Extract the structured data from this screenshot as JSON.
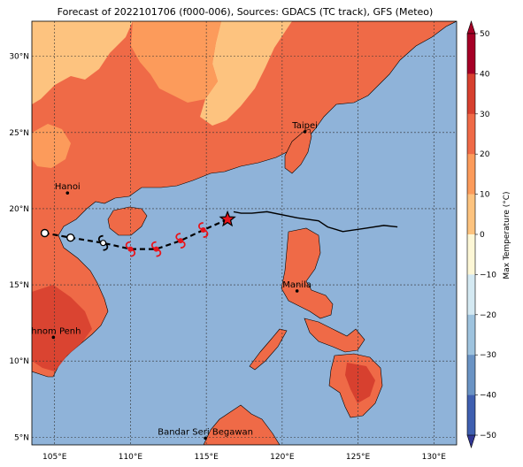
{
  "title": "Forecast of 2022101706 (f000-006), Sources: GDACS (TC track), GFS (Meteo)",
  "colors": {
    "sea": "#8fb3d9",
    "land_base": "#ef6a47",
    "land_hot": "#d7402f",
    "land_warm": "#fc9b5b",
    "land_mild": "#fdc37f",
    "track_future": "#000000",
    "storm_symbol": "#e8141b"
  },
  "map": {
    "lon_range": [
      103.5,
      131.5
    ],
    "lat_range": [
      4.5,
      32.3
    ],
    "lon_ticks": [
      {
        "value": 105,
        "label": "105°E"
      },
      {
        "value": 110,
        "label": "110°E"
      },
      {
        "value": 115,
        "label": "115°E"
      },
      {
        "value": 120,
        "label": "120°E"
      },
      {
        "value": 125,
        "label": "125°E"
      },
      {
        "value": 130,
        "label": "130°E"
      }
    ],
    "lat_ticks": [
      {
        "value": 5,
        "label": "5°N"
      },
      {
        "value": 10,
        "label": "10°N"
      },
      {
        "value": 15,
        "label": "15°N"
      },
      {
        "value": 20,
        "label": "20°N"
      },
      {
        "value": 25,
        "label": "25°N"
      },
      {
        "value": 30,
        "label": "30°N"
      }
    ],
    "grid": true
  },
  "cities": [
    {
      "name": "Taipei",
      "lon": 121.5,
      "lat": 25.05
    },
    {
      "name": "Hanoi",
      "lon": 105.85,
      "lat": 21.03
    },
    {
      "name": "Manila",
      "lon": 120.98,
      "lat": 14.6
    },
    {
      "name": "Phnom Penh",
      "lon": 104.92,
      "lat": 11.56
    },
    {
      "name": "Bandar Seri Begawan",
      "lon": 114.94,
      "lat": 4.94
    }
  ],
  "track": {
    "past": [
      {
        "lon": 127.6,
        "lat": 18.8
      },
      {
        "lon": 126.7,
        "lat": 18.9
      },
      {
        "lon": 125.4,
        "lat": 18.7
      },
      {
        "lon": 124.0,
        "lat": 18.5
      },
      {
        "lon": 123.0,
        "lat": 18.8
      },
      {
        "lon": 122.4,
        "lat": 19.2
      },
      {
        "lon": 121.0,
        "lat": 19.4
      },
      {
        "lon": 119.0,
        "lat": 19.8
      },
      {
        "lon": 118.0,
        "lat": 19.7
      },
      {
        "lon": 117.3,
        "lat": 19.7
      },
      {
        "lon": 116.8,
        "lat": 19.8
      }
    ],
    "current": {
      "lon": 116.4,
      "lat": 19.3
    },
    "forecast": [
      {
        "lon": 114.8,
        "lat": 18.6,
        "kind": "storm"
      },
      {
        "lon": 113.3,
        "lat": 17.9,
        "kind": "storm"
      },
      {
        "lon": 111.7,
        "lat": 17.35,
        "kind": "storm"
      },
      {
        "lon": 110.0,
        "lat": 17.35,
        "kind": "storm"
      },
      {
        "lon": 108.2,
        "lat": 17.75,
        "kind": "depression"
      },
      {
        "lon": 106.05,
        "lat": 18.1,
        "kind": "low"
      },
      {
        "lon": 104.35,
        "lat": 18.4,
        "kind": "low"
      }
    ]
  },
  "colorbar": {
    "label": "Max Temperature (°C)",
    "min": -50,
    "max": 50,
    "ticks": [
      {
        "value": 50,
        "label": "50"
      },
      {
        "value": 40,
        "label": "40"
      },
      {
        "value": 30,
        "label": "30"
      },
      {
        "value": 20,
        "label": "20"
      },
      {
        "value": 10,
        "label": "10"
      },
      {
        "value": 0,
        "label": "0"
      },
      {
        "value": -10,
        "label": "−10"
      },
      {
        "value": -20,
        "label": "−20"
      },
      {
        "value": -30,
        "label": "−30"
      },
      {
        "value": -40,
        "label": "−40"
      },
      {
        "value": -50,
        "label": "−50"
      }
    ],
    "colors": [
      "#313695",
      "#3f5fb0",
      "#6a93c4",
      "#9ec3de",
      "#d4e9f2",
      "#fdf7d6",
      "#fdc37f",
      "#fc9b5b",
      "#ef6a47",
      "#d7402f",
      "#a50026"
    ]
  }
}
